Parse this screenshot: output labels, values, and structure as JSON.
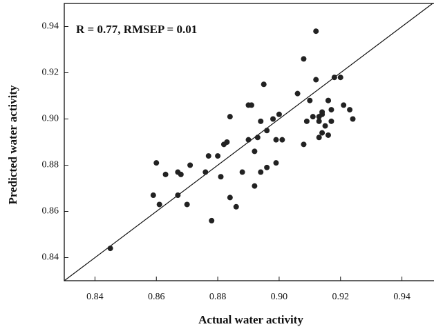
{
  "chart_data": {
    "type": "scatter",
    "annotation": "R = 0.77, RMSEP = 0.01",
    "xlabel": "Actual water activity",
    "ylabel": "Predicted water activity",
    "color": "#222222",
    "xlim": [
      0.83,
      0.95
    ],
    "ylim": [
      0.83,
      0.95
    ],
    "xticks": [
      0.84,
      0.86,
      0.88,
      {
        "value": 0.9,
        "label": "0.90"
      },
      0.92,
      0.94
    ],
    "yticks": [
      0.84,
      0.86,
      0.88,
      {
        "value": 0.9,
        "label": "0.90"
      },
      0.92,
      0.94
    ],
    "x": [
      0.845,
      0.86,
      0.861,
      0.859,
      0.863,
      0.867,
      0.867,
      0.868,
      0.87,
      0.871,
      0.876,
      0.877,
      0.878,
      0.88,
      0.881,
      0.882,
      0.883,
      0.884,
      0.884,
      0.886,
      0.888,
      0.89,
      0.89,
      0.891,
      0.892,
      0.892,
      0.893,
      0.894,
      0.894,
      0.895,
      0.896,
      0.896,
      0.898,
      0.899,
      0.899,
      0.9,
      0.901,
      0.906,
      0.908,
      0.908,
      0.909,
      0.91,
      0.911,
      0.912,
      0.912,
      0.913,
      0.913,
      0.914,
      0.914,
      0.915,
      0.916,
      0.916,
      0.916,
      0.917,
      0.917,
      0.918,
      0.92,
      0.921,
      0.923,
      0.924,
      0.914,
      0.913
    ],
    "values": [
      0.844,
      0.881,
      0.863,
      0.867,
      0.876,
      0.867,
      0.877,
      0.876,
      0.863,
      0.88,
      0.877,
      0.884,
      0.856,
      0.884,
      0.875,
      0.889,
      0.89,
      0.901,
      0.866,
      0.862,
      0.877,
      0.891,
      0.906,
      0.906,
      0.871,
      0.886,
      0.892,
      0.899,
      0.877,
      0.915,
      0.879,
      0.895,
      0.9,
      0.891,
      0.881,
      0.902,
      0.891,
      0.911,
      0.926,
      0.889,
      0.899,
      0.908,
      0.901,
      0.938,
      0.917,
      0.901,
      0.899,
      0.903,
      0.894,
      0.897,
      0.908,
      0.893,
      0.908,
      0.899,
      0.904,
      0.918,
      0.918,
      0.906,
      0.904,
      0.9,
      0.902,
      0.892
    ]
  }
}
